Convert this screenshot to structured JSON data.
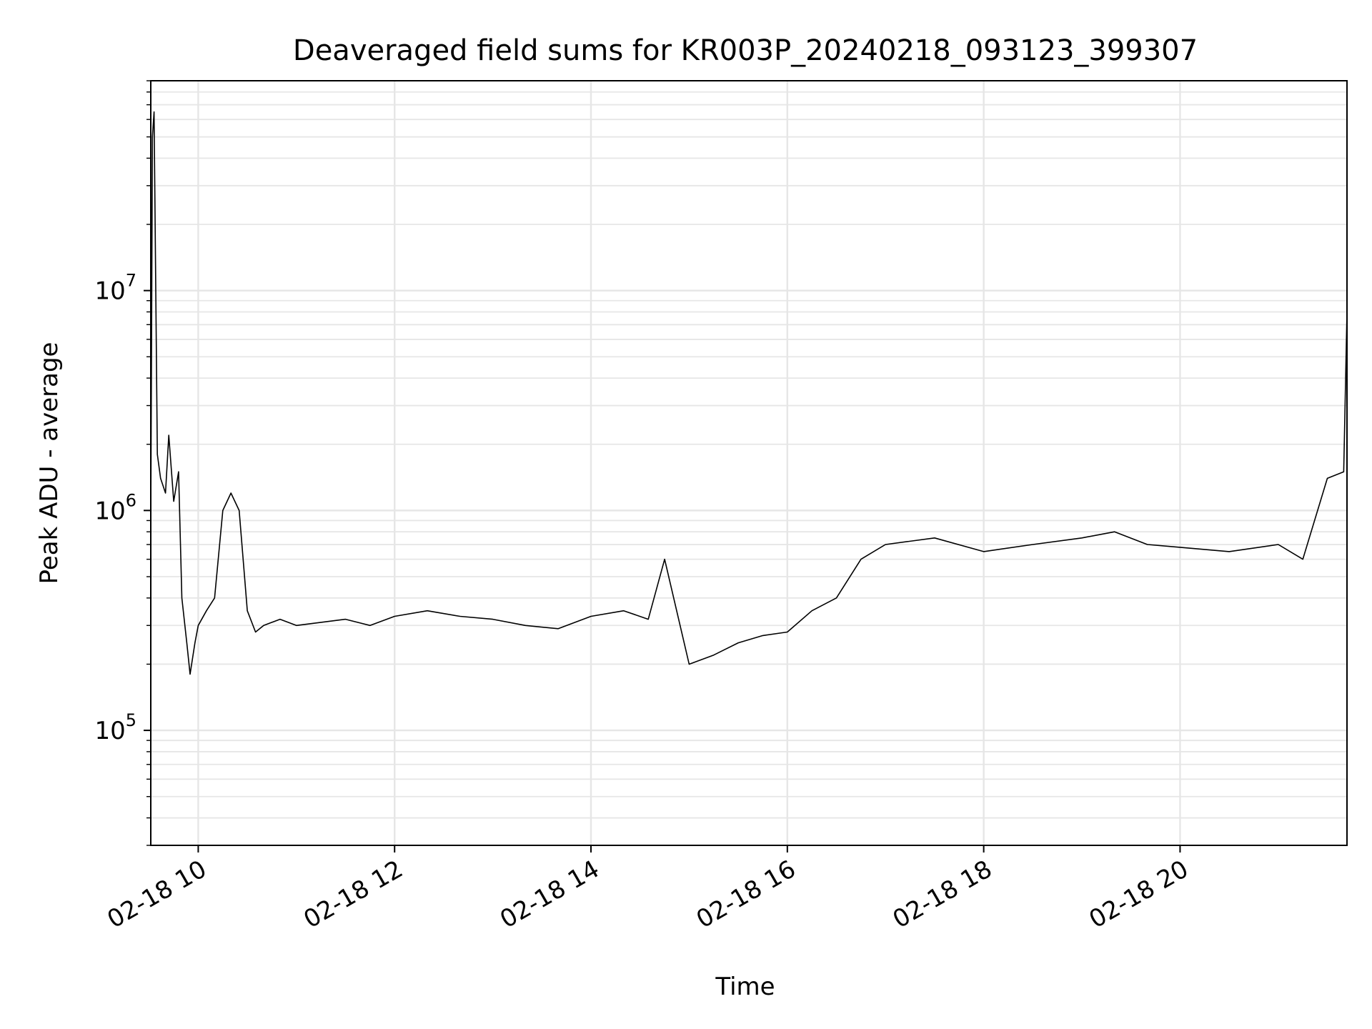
{
  "chart_data": {
    "type": "line",
    "title": "Deaveraged field sums for KR003P_20240218_093123_399307",
    "xlabel": "Time",
    "ylabel": "Peak ADU - average",
    "x_tick_labels": [
      "02-18 10",
      "02-18 12",
      "02-18 14",
      "02-18 16",
      "02-18 18",
      "02-18 20"
    ],
    "x_tick_values": [
      "2024-02-18 10:00",
      "2024-02-18 12:00",
      "2024-02-18 14:00",
      "2024-02-18 16:00",
      "2024-02-18 18:00",
      "2024-02-18 20:00"
    ],
    "y_scale": "log",
    "y_tick_labels": [
      {
        "value": 100000,
        "base": "10",
        "exp": "5"
      },
      {
        "value": 1000000,
        "base": "10",
        "exp": "6"
      },
      {
        "value": 10000000,
        "base": "10",
        "exp": "7"
      }
    ],
    "xlim": [
      "2024-02-18 09:31",
      "2024-02-18 21:42"
    ],
    "ylim": [
      30000,
      90000000
    ],
    "grid": true,
    "line_color": "#000000",
    "grid_color": "#e6e6e6",
    "series": [
      {
        "x": [
          "2024-02-18 09:31",
          "2024-02-18 09:32",
          "2024-02-18 09:33",
          "2024-02-18 09:35",
          "2024-02-18 09:37",
          "2024-02-18 09:40",
          "2024-02-18 09:42",
          "2024-02-18 09:45",
          "2024-02-18 09:48",
          "2024-02-18 09:50",
          "2024-02-18 09:53",
          "2024-02-18 09:55",
          "2024-02-18 09:58",
          "2024-02-18 10:00",
          "2024-02-18 10:05",
          "2024-02-18 10:10",
          "2024-02-18 10:15",
          "2024-02-18 10:20",
          "2024-02-18 10:25",
          "2024-02-18 10:30",
          "2024-02-18 10:35",
          "2024-02-18 10:40",
          "2024-02-18 10:45",
          "2024-02-18 10:50",
          "2024-02-18 11:00",
          "2024-02-18 11:15",
          "2024-02-18 11:30",
          "2024-02-18 11:45",
          "2024-02-18 12:00",
          "2024-02-18 12:20",
          "2024-02-18 12:40",
          "2024-02-18 13:00",
          "2024-02-18 13:20",
          "2024-02-18 13:40",
          "2024-02-18 14:00",
          "2024-02-18 14:20",
          "2024-02-18 14:35",
          "2024-02-18 14:45",
          "2024-02-18 15:00",
          "2024-02-18 15:15",
          "2024-02-18 15:30",
          "2024-02-18 15:45",
          "2024-02-18 16:00",
          "2024-02-18 16:15",
          "2024-02-18 16:30",
          "2024-02-18 16:45",
          "2024-02-18 17:00",
          "2024-02-18 17:30",
          "2024-02-18 18:00",
          "2024-02-18 18:30",
          "2024-02-18 19:00",
          "2024-02-18 19:20",
          "2024-02-18 19:40",
          "2024-02-18 20:00",
          "2024-02-18 20:30",
          "2024-02-18 21:00",
          "2024-02-18 21:15",
          "2024-02-18 21:30",
          "2024-02-18 21:40",
          "2024-02-18 21:42"
        ],
        "y": [
          900000,
          50000000,
          65000000,
          1800000,
          1400000,
          1200000,
          2200000,
          1100000,
          1500000,
          400000,
          250000,
          180000,
          250000,
          300000,
          350000,
          400000,
          1000000,
          1200000,
          1000000,
          350000,
          280000,
          300000,
          310000,
          320000,
          300000,
          310000,
          320000,
          300000,
          330000,
          350000,
          330000,
          320000,
          300000,
          290000,
          330000,
          350000,
          320000,
          600000,
          200000,
          220000,
          250000,
          270000,
          280000,
          350000,
          400000,
          600000,
          700000,
          750000,
          650000,
          700000,
          750000,
          800000,
          700000,
          680000,
          650000,
          700000,
          600000,
          1400000,
          1500000,
          8000000
        ]
      }
    ]
  }
}
